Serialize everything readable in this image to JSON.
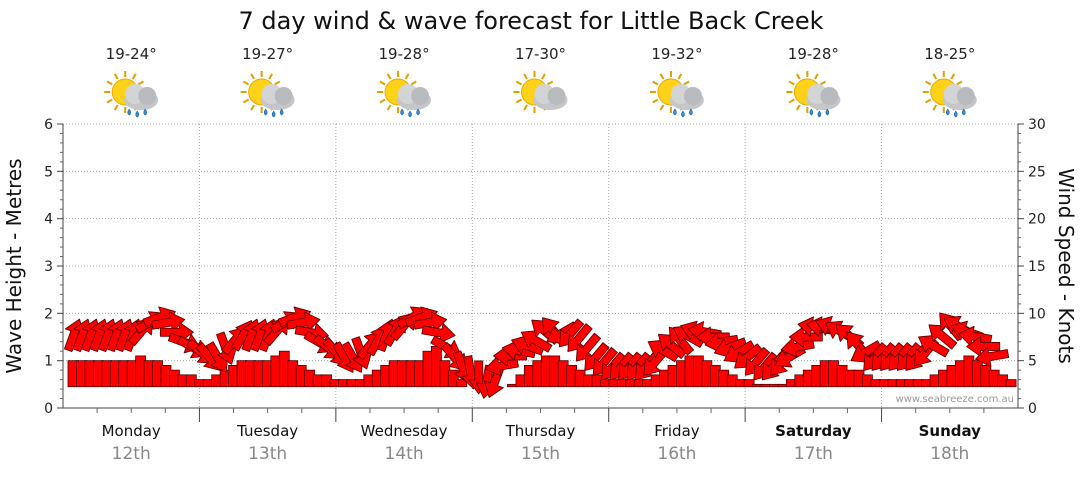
{
  "chart_data": {
    "type": "line",
    "title": "7 day wind & wave forecast for Little Back Creek",
    "ylabel_left": "Wave Height - Metres",
    "ylabel_right": "Wind Speed - Knots",
    "ylim_left": [
      0,
      6
    ],
    "ylim_right": [
      0,
      30
    ],
    "left_ticks": [
      "0",
      "1",
      "2",
      "3",
      "4",
      "5",
      "6"
    ],
    "right_ticks": [
      "0",
      "5",
      "10",
      "15",
      "20",
      "25",
      "30"
    ],
    "grid": true,
    "watermark": "www.seabreeze.com.au",
    "days": [
      {
        "day": "Monday",
        "date": "12th",
        "temp": "19-24°",
        "weather_icon": "sun-cloud-rain-icon",
        "bold": false
      },
      {
        "day": "Tuesday",
        "date": "13th",
        "temp": "19-27°",
        "weather_icon": "sun-cloud-rain-icon",
        "bold": false
      },
      {
        "day": "Wednesday",
        "date": "14th",
        "temp": "19-28°",
        "weather_icon": "sun-cloud-rain-icon",
        "bold": false
      },
      {
        "day": "Thursday",
        "date": "15th",
        "temp": "17-30°",
        "weather_icon": "sun-cloud-icon",
        "bold": false
      },
      {
        "day": "Friday",
        "date": "16th",
        "temp": "19-32°",
        "weather_icon": "sun-cloud-rain-icon",
        "bold": false
      },
      {
        "day": "Saturday",
        "date": "17th",
        "temp": "19-28°",
        "weather_icon": "sun-cloud-rain-icon",
        "bold": true
      },
      {
        "day": "Sunday",
        "date": "18th",
        "temp": "18-25°",
        "weather_icon": "sun-cloud-rain-icon",
        "bold": true
      }
    ],
    "series": [
      {
        "kind": "wave-height-bars",
        "unit": "m",
        "color": "#ff0000",
        "values": [
          1.0,
          1.0,
          1.0,
          1.0,
          1.0,
          1.0,
          1.0,
          1.0,
          1.1,
          1.0,
          1.0,
          0.9,
          0.8,
          0.7,
          0.7,
          0.6,
          0.6,
          0.7,
          0.8,
          0.9,
          1.0,
          1.0,
          1.0,
          1.0,
          1.1,
          1.2,
          1.0,
          0.9,
          0.8,
          0.7,
          0.7,
          0.6,
          0.6,
          0.6,
          0.6,
          0.7,
          0.8,
          0.9,
          1.0,
          1.0,
          1.0,
          1.0,
          1.2,
          1.3,
          1.0,
          0.8,
          0.6,
          0.4,
          0.3,
          0.2,
          0.2,
          0.3,
          0.5,
          0.7,
          0.9,
          1.0,
          1.1,
          1.1,
          1.0,
          0.9,
          0.8,
          0.7,
          0.7,
          0.6,
          0.6,
          0.6,
          0.6,
          0.6,
          0.6,
          0.7,
          0.8,
          0.9,
          1.0,
          1.1,
          1.1,
          1.0,
          0.9,
          0.8,
          0.7,
          0.6,
          0.6,
          0.5,
          0.5,
          0.5,
          0.5,
          0.6,
          0.7,
          0.8,
          0.9,
          1.0,
          1.0,
          0.9,
          0.8,
          0.8,
          0.7,
          0.6,
          0.6,
          0.6,
          0.6,
          0.6,
          0.6,
          0.6,
          0.7,
          0.8,
          0.9,
          1.0,
          1.1,
          1.0,
          0.9,
          0.8,
          0.7,
          0.6
        ]
      },
      {
        "kind": "wind-speed-arrows",
        "unit": "knots",
        "color": "#ff0000",
        "speeds": [
          7.5,
          7.5,
          7.5,
          7.5,
          7.5,
          7.5,
          7.5,
          7.5,
          8.0,
          9.0,
          9.5,
          9.0,
          8.0,
          7.0,
          6.5,
          6.0,
          5.5,
          5.5,
          6.5,
          7.0,
          7.5,
          7.5,
          7.5,
          7.5,
          8.0,
          9.0,
          9.5,
          9.0,
          8.0,
          7.0,
          6.5,
          6.0,
          5.5,
          5.5,
          6.0,
          6.5,
          7.0,
          7.5,
          8.0,
          8.5,
          9.5,
          9.5,
          9.0,
          8.0,
          6.5,
          5.5,
          4.5,
          4.0,
          3.5,
          3.0,
          3.0,
          4.5,
          5.5,
          6.0,
          6.5,
          7.0,
          8.0,
          8.0,
          8.0,
          8.0,
          7.5,
          6.5,
          5.5,
          5.0,
          4.5,
          4.5,
          4.5,
          4.5,
          4.5,
          5.0,
          6.0,
          6.5,
          7.0,
          7.5,
          8.0,
          8.0,
          7.5,
          7.0,
          6.5,
          6.0,
          5.5,
          5.0,
          4.5,
          4.5,
          5.0,
          5.5,
          6.5,
          7.5,
          8.5,
          8.5,
          8.5,
          8.0,
          7.5,
          6.5,
          6.0,
          5.5,
          5.5,
          5.5,
          5.5,
          5.5,
          5.5,
          6.0,
          6.5,
          7.5,
          8.5,
          8.5,
          8.0,
          7.5,
          6.5,
          5.5
        ],
        "directions_deg": [
          20,
          20,
          20,
          20,
          20,
          20,
          20,
          20,
          40,
          60,
          70,
          80,
          90,
          110,
          120,
          130,
          140,
          150,
          160,
          40,
          30,
          20,
          20,
          20,
          40,
          60,
          70,
          80,
          100,
          120,
          130,
          140,
          150,
          150,
          160,
          40,
          30,
          20,
          30,
          40,
          60,
          70,
          80,
          100,
          120,
          140,
          160,
          170,
          180,
          190,
          200,
          260,
          270,
          280,
          290,
          300,
          310,
          320,
          240,
          220,
          220,
          220,
          220,
          220,
          220,
          220,
          220,
          220,
          220,
          220,
          300,
          310,
          320,
          300,
          290,
          280,
          270,
          260,
          250,
          240,
          230,
          220,
          220,
          220,
          220,
          240,
          260,
          270,
          280,
          280,
          290,
          300,
          310,
          320,
          240,
          220,
          220,
          220,
          220,
          220,
          220,
          220,
          300,
          310,
          320,
          300,
          290,
          280,
          270,
          260
        ]
      }
    ]
  }
}
